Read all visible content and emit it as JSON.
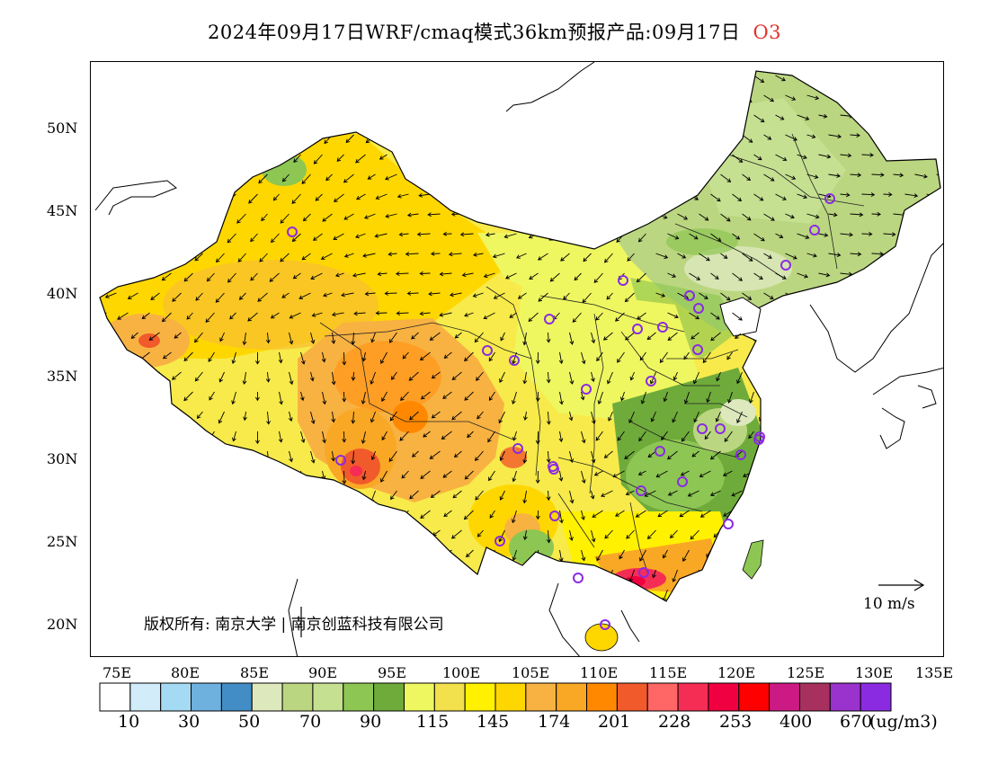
{
  "title": {
    "main": "2024年09月17日WRF/cmaq模式36km预报产品:09月17日",
    "species": "O3",
    "species_color": "#e0342c"
  },
  "axes": {
    "y_labels": [
      "50N",
      "45N",
      "40N",
      "35N",
      "30N",
      "25N",
      "20N"
    ],
    "x_labels": [
      "75E",
      "80E",
      "85E",
      "90E",
      "95E",
      "100E",
      "105E",
      "110E",
      "115E",
      "120E",
      "125E",
      "130E",
      "135E"
    ],
    "lon_range": [
      73,
      135
    ],
    "lat_range": [
      18,
      54
    ]
  },
  "annotations": {
    "copyright": "版权所有: 南京大学 | 南京创蓝科技有限公司",
    "wind_scale": "10 m/s"
  },
  "legend": {
    "colors": [
      "#ffffff",
      "#d2ecfa",
      "#a5daf4",
      "#6fb1de",
      "#428dc6",
      "#dde8bd",
      "#bbd680",
      "#c5e091",
      "#8dc653",
      "#6fab3b",
      "#eef760",
      "#f2e04c",
      "#fff100",
      "#ffd700",
      "#f8b242",
      "#f9a825",
      "#ff8800",
      "#f15a2b",
      "#ff6666",
      "#f52d55",
      "#f00040",
      "#ff0000",
      "#cc1a84",
      "#a8305e",
      "#9a32cd",
      "#8a2be2"
    ],
    "ticks": [
      "10",
      "30",
      "50",
      "70",
      "90",
      "115",
      "145",
      "174",
      "201",
      "228",
      "253",
      "400",
      "670"
    ],
    "unit": "(ug/m3)"
  },
  "map": {
    "style": "China O3 concentration map with wind vectors and monitoring site markers",
    "site_marker_color": "#8a2be2",
    "site_count": 41,
    "zone_colors": {
      "northeast": "#bbd680",
      "northwest": "#ffd700",
      "tibet_core": "#f8b242",
      "tibet_hot": "#ff8800",
      "south_coast_hot": "#f52d55",
      "yangtze_green": "#6fab3b",
      "central_yellow": "#eef760"
    }
  }
}
